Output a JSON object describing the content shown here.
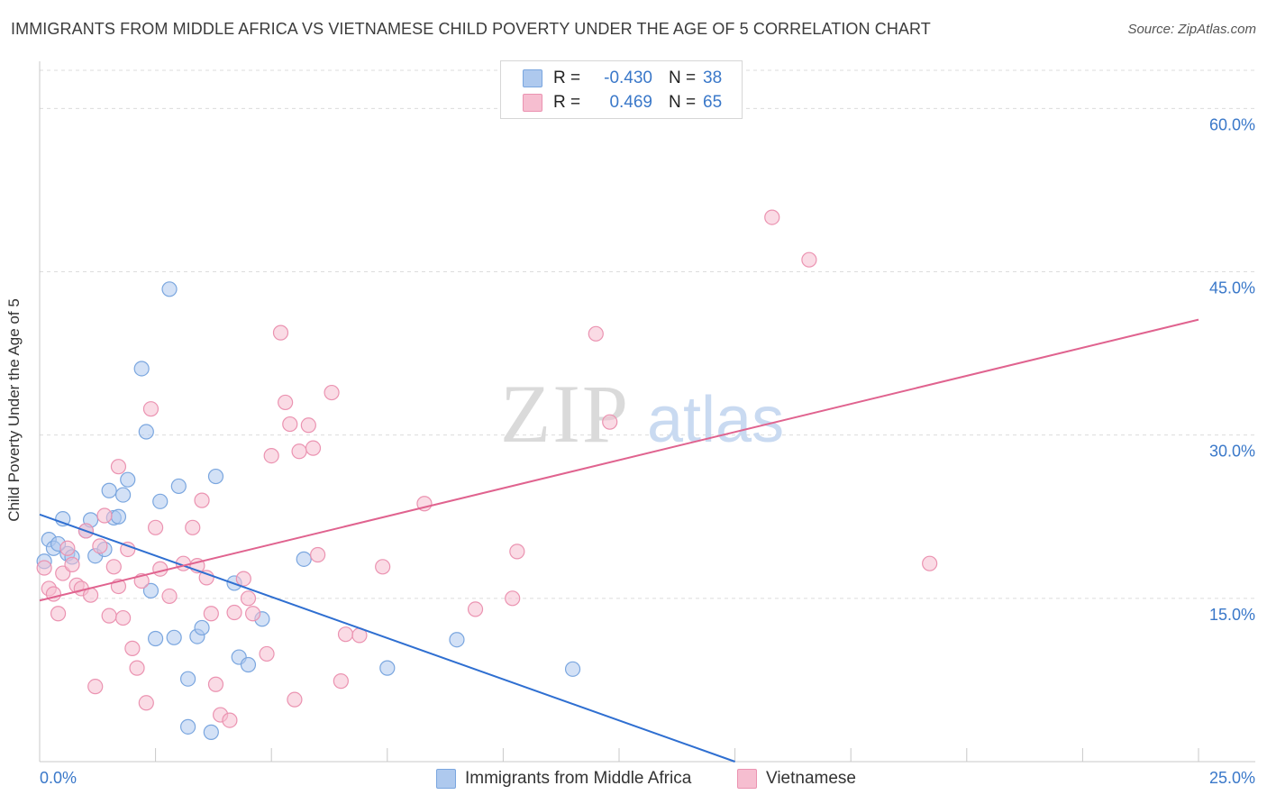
{
  "title": "IMMIGRANTS FROM MIDDLE AFRICA VS VIETNAMESE CHILD POVERTY UNDER THE AGE OF 5 CORRELATION CHART",
  "source": "Source: ZipAtlas.com",
  "watermark": {
    "zip": "ZIP",
    "atlas": "atlas"
  },
  "colors": {
    "blue_fill": "#aec9ee",
    "blue_stroke": "#7aa6df",
    "blue_line": "#2f6fd1",
    "pink_fill": "#f6bed0",
    "pink_stroke": "#eb93b1",
    "pink_line": "#e0638f",
    "accent_text": "#3a78c9"
  },
  "legend": {
    "rows": [
      {
        "r_label": "R =",
        "r_value": "-0.430",
        "n_label": "N =",
        "n_value": "38"
      },
      {
        "r_label": "R =",
        "r_value": "0.469",
        "n_label": "N =",
        "n_value": "65"
      }
    ]
  },
  "bottom_legend": {
    "series1": "Immigrants from Middle Africa",
    "series2": "Vietnamese"
  },
  "axes": {
    "x_min_label": "0.0%",
    "x_max_label": "25.0%",
    "y_ticks": [
      "15.0%",
      "30.0%",
      "45.0%",
      "60.0%"
    ],
    "ylabel": "Child Poverty Under the Age of 5"
  },
  "chart_data": {
    "type": "scatter",
    "title": "IMMIGRANTS FROM MIDDLE AFRICA VS VIETNAMESE CHILD POVERTY UNDER THE AGE OF 5 CORRELATION CHART",
    "xlabel": "",
    "ylabel": "Child Poverty Under the Age of 5",
    "xlim": [
      0,
      25
    ],
    "ylim": [
      0,
      64
    ],
    "y_gridlines": [
      15,
      30,
      45,
      60
    ],
    "series": [
      {
        "name": "Immigrants from Middle Africa",
        "color": "#aec9ee",
        "R": -0.43,
        "N": 38,
        "trend": {
          "x0": 0,
          "y0": 22.7,
          "x1": 15.0,
          "y1": 0
        },
        "points": [
          [
            0.1,
            18.4
          ],
          [
            0.2,
            20.4
          ],
          [
            0.3,
            19.6
          ],
          [
            0.5,
            22.3
          ],
          [
            0.6,
            19.1
          ],
          [
            0.7,
            18.8
          ],
          [
            1.0,
            21.2
          ],
          [
            1.1,
            22.2
          ],
          [
            1.2,
            18.9
          ],
          [
            1.4,
            19.5
          ],
          [
            1.5,
            24.9
          ],
          [
            1.6,
            22.4
          ],
          [
            1.7,
            22.5
          ],
          [
            1.8,
            24.5
          ],
          [
            1.9,
            25.9
          ],
          [
            2.2,
            36.1
          ],
          [
            2.3,
            30.3
          ],
          [
            2.4,
            15.7
          ],
          [
            2.5,
            11.3
          ],
          [
            2.6,
            23.9
          ],
          [
            2.8,
            43.4
          ],
          [
            2.9,
            11.4
          ],
          [
            3.0,
            25.3
          ],
          [
            3.2,
            7.6
          ],
          [
            3.2,
            3.2
          ],
          [
            3.4,
            11.5
          ],
          [
            3.5,
            12.3
          ],
          [
            3.7,
            2.7
          ],
          [
            3.8,
            26.2
          ],
          [
            4.2,
            16.4
          ],
          [
            4.3,
            9.6
          ],
          [
            4.5,
            8.9
          ],
          [
            4.8,
            13.1
          ],
          [
            5.7,
            18.6
          ],
          [
            7.5,
            8.6
          ],
          [
            9.0,
            11.2
          ],
          [
            11.5,
            8.5
          ],
          [
            0.4,
            20.0
          ]
        ]
      },
      {
        "name": "Vietnamese",
        "color": "#f6bed0",
        "R": 0.469,
        "N": 65,
        "trend": {
          "x0": 0,
          "y0": 14.8,
          "x1": 25.0,
          "y1": 40.6
        },
        "points": [
          [
            0.1,
            17.8
          ],
          [
            0.2,
            15.9
          ],
          [
            0.3,
            15.4
          ],
          [
            0.4,
            13.6
          ],
          [
            0.5,
            17.3
          ],
          [
            0.6,
            19.6
          ],
          [
            0.7,
            18.1
          ],
          [
            0.8,
            16.2
          ],
          [
            0.9,
            15.9
          ],
          [
            1.0,
            21.2
          ],
          [
            1.1,
            15.3
          ],
          [
            1.2,
            6.9
          ],
          [
            1.3,
            19.8
          ],
          [
            1.4,
            22.6
          ],
          [
            1.5,
            13.4
          ],
          [
            1.6,
            17.9
          ],
          [
            1.7,
            16.1
          ],
          [
            1.7,
            27.1
          ],
          [
            1.8,
            13.2
          ],
          [
            1.9,
            19.5
          ],
          [
            2.0,
            10.4
          ],
          [
            2.1,
            8.6
          ],
          [
            2.2,
            16.6
          ],
          [
            2.3,
            5.4
          ],
          [
            2.4,
            32.4
          ],
          [
            2.5,
            21.5
          ],
          [
            2.6,
            17.7
          ],
          [
            2.8,
            15.2
          ],
          [
            3.1,
            18.2
          ],
          [
            3.3,
            21.5
          ],
          [
            3.4,
            18.0
          ],
          [
            3.5,
            24.0
          ],
          [
            3.6,
            16.9
          ],
          [
            3.7,
            13.6
          ],
          [
            3.8,
            7.1
          ],
          [
            3.9,
            4.3
          ],
          [
            4.1,
            3.8
          ],
          [
            4.2,
            13.7
          ],
          [
            4.4,
            16.8
          ],
          [
            4.5,
            15.0
          ],
          [
            4.6,
            13.6
          ],
          [
            4.9,
            9.9
          ],
          [
            5.0,
            28.1
          ],
          [
            5.2,
            39.4
          ],
          [
            5.3,
            33.0
          ],
          [
            5.4,
            31.0
          ],
          [
            5.5,
            5.7
          ],
          [
            5.6,
            28.5
          ],
          [
            5.8,
            30.9
          ],
          [
            5.9,
            28.8
          ],
          [
            6.0,
            19.0
          ],
          [
            6.3,
            33.9
          ],
          [
            6.5,
            7.4
          ],
          [
            6.6,
            11.7
          ],
          [
            6.9,
            11.6
          ],
          [
            7.4,
            17.9
          ],
          [
            8.3,
            23.7
          ],
          [
            9.4,
            14.0
          ],
          [
            10.2,
            15.0
          ],
          [
            10.3,
            19.3
          ],
          [
            12.0,
            39.3
          ],
          [
            12.3,
            31.2
          ],
          [
            15.8,
            50.0
          ],
          [
            16.6,
            46.1
          ],
          [
            19.2,
            18.2
          ]
        ]
      }
    ]
  }
}
